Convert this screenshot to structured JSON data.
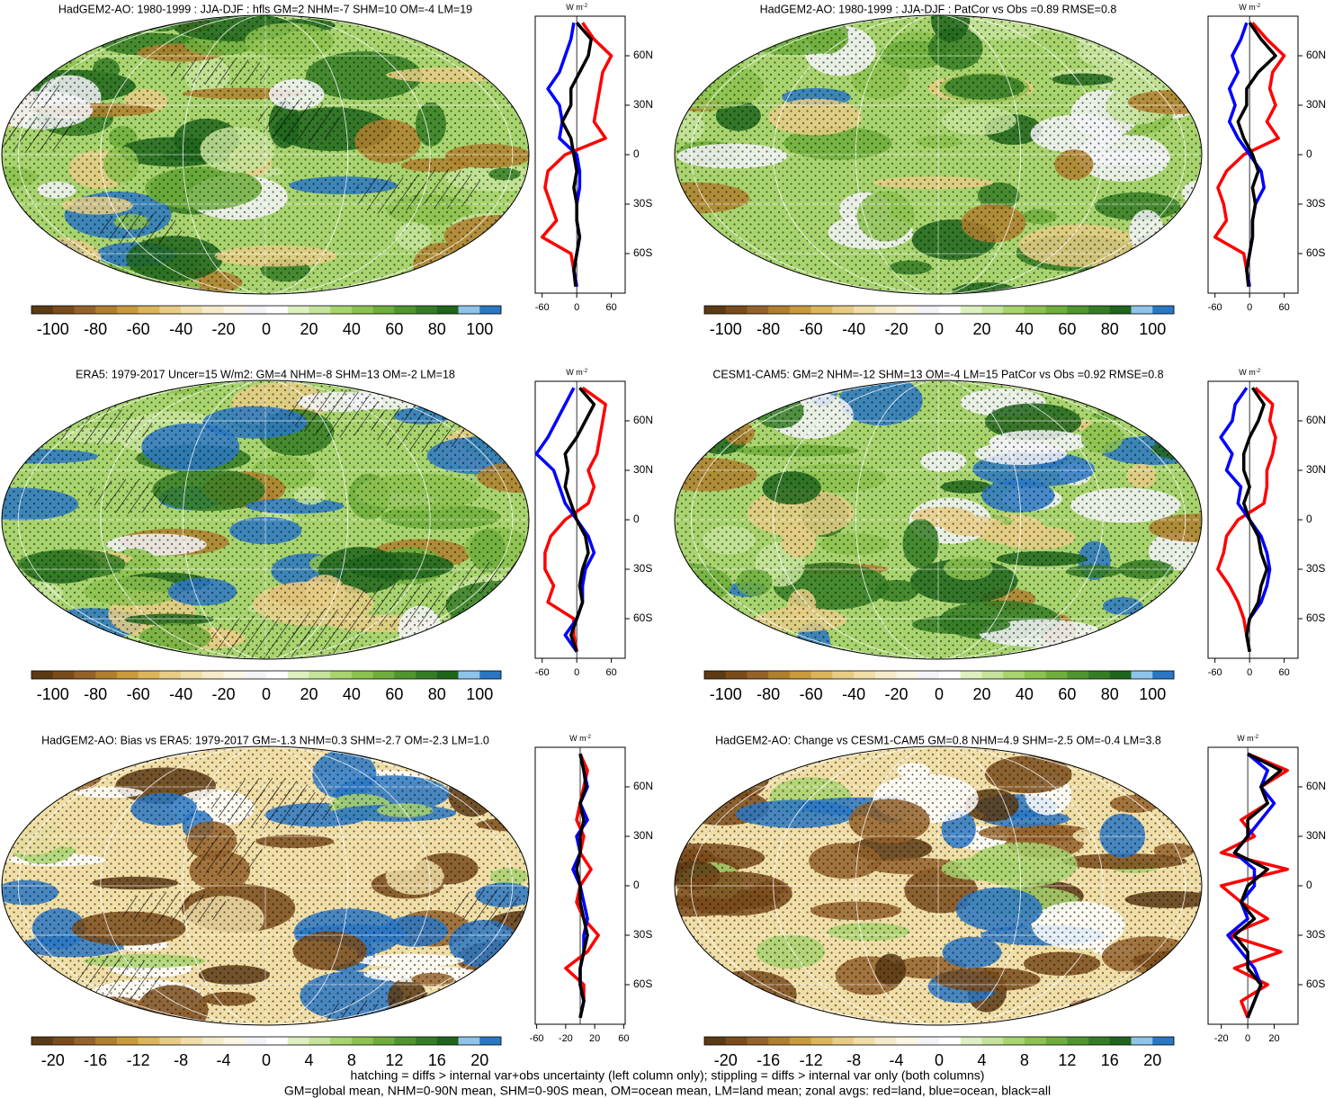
{
  "palette": [
    "#5c3a14",
    "#7a4b1b",
    "#94622a",
    "#b07f2e",
    "#c99a3c",
    "#dcb45a",
    "#e8cc85",
    "#f0dea6",
    "#f6ebc8",
    "#fbf5e3",
    "#f3f3f8",
    "#ffffff",
    "#dff0c0",
    "#c5e39a",
    "#a8d46e",
    "#8cc24f",
    "#6fae3c",
    "#4f962e",
    "#357d24",
    "#1f651c",
    "#8ec4ea",
    "#2a77c4"
  ],
  "panels": [
    {
      "title": "HadGEM2-AO: 1980-1999 : JJA-DJF : hfls GM=2 NHM=-7 SHM=10 OM=-4 LM=19",
      "colorbar": {
        "lim": [
          -110,
          110
        ],
        "ticks": [
          -100,
          -80,
          -60,
          -40,
          -20,
          0,
          20,
          40,
          60,
          80,
          100
        ]
      },
      "zonal": {
        "type": "line",
        "unit": {
          "base": "W m",
          "exp": "-2"
        },
        "xlim": [
          -72,
          84
        ],
        "xticks": [
          -60,
          0,
          60
        ],
        "ylim": [
          -84,
          84
        ],
        "yticks": [
          {
            "value": 60,
            "label": "60N"
          },
          {
            "value": 30,
            "label": "30N"
          },
          0,
          {
            "value": -30,
            "label": "30S"
          },
          {
            "value": -60,
            "label": "60S"
          }
        ],
        "lat": [
          80,
          70,
          60,
          50,
          40,
          30,
          20,
          10,
          0,
          -10,
          -20,
          -30,
          -40,
          -50,
          -60,
          -70,
          -80
        ],
        "series": [
          {
            "color": "#ff0000",
            "values": [
              10,
              30,
              60,
              45,
              40,
              35,
              30,
              50,
              -20,
              -50,
              -55,
              -45,
              -35,
              -60,
              -10,
              -5,
              0
            ]
          },
          {
            "color": "#0000ff",
            "values": [
              -5,
              -10,
              -20,
              -30,
              -50,
              -30,
              -25,
              -30,
              0,
              5,
              5,
              0,
              0,
              5,
              0,
              -5,
              0
            ]
          },
          {
            "color": "#000000",
            "values": [
              0,
              25,
              20,
              5,
              -10,
              -10,
              -25,
              -10,
              -5,
              0,
              -5,
              0,
              0,
              5,
              0,
              -5,
              -2
            ]
          }
        ]
      }
    },
    {
      "title": "HadGEM2-AO: 1980-1999 : JJA-DJF : PatCor vs Obs =0.89 RMSE=0.8",
      "colorbar": {
        "lim": [
          -110,
          110
        ],
        "ticks": [
          -100,
          -80,
          -60,
          -40,
          -20,
          0,
          20,
          40,
          60,
          80,
          100
        ]
      },
      "zonal": {
        "type": "line",
        "unit": {
          "base": "W m",
          "exp": "-2"
        },
        "xlim": [
          -72,
          84
        ],
        "xticks": [
          -60,
          0,
          60
        ],
        "ylim": [
          -84,
          84
        ],
        "yticks": [
          {
            "value": 60,
            "label": "60N"
          },
          {
            "value": 30,
            "label": "30N"
          },
          0,
          {
            "value": -30,
            "label": "30S"
          },
          {
            "value": -60,
            "label": "60S"
          }
        ],
        "lat": [
          80,
          70,
          60,
          50,
          40,
          30,
          20,
          10,
          0,
          -10,
          -20,
          -30,
          -40,
          -50,
          -60,
          -70,
          -80
        ],
        "series": [
          {
            "color": "#ff0000",
            "values": [
              5,
              30,
              60,
              40,
              35,
              45,
              30,
              50,
              -10,
              -40,
              -55,
              -45,
              -40,
              -60,
              -10,
              -5,
              0
            ]
          },
          {
            "color": "#0000ff",
            "values": [
              -5,
              -15,
              -30,
              -20,
              -35,
              -25,
              -35,
              -20,
              0,
              20,
              25,
              10,
              5,
              5,
              0,
              -5,
              0
            ]
          },
          {
            "color": "#000000",
            "values": [
              0,
              20,
              45,
              15,
              -5,
              -5,
              -20,
              -10,
              5,
              15,
              5,
              10,
              5,
              5,
              0,
              -5,
              -2
            ]
          }
        ]
      }
    },
    {
      "title": "ERA5: 1979-2017 Uncer=15 W/m2: GM=4 NHM=-8 SHM=13 OM=-2 LM=18",
      "colorbar": {
        "lim": [
          -110,
          110
        ],
        "ticks": [
          -100,
          -80,
          -60,
          -40,
          -20,
          0,
          20,
          40,
          60,
          80,
          100
        ]
      },
      "zonal": {
        "type": "line",
        "unit": {
          "base": "W m",
          "exp": "-2"
        },
        "xlim": [
          -72,
          84
        ],
        "xticks": [
          -60,
          0,
          60
        ],
        "ylim": [
          -84,
          84
        ],
        "yticks": [
          {
            "value": 60,
            "label": "60N"
          },
          {
            "value": 30,
            "label": "30N"
          },
          0,
          {
            "value": -30,
            "label": "30S"
          },
          {
            "value": -60,
            "label": "60S"
          }
        ],
        "lat": [
          80,
          70,
          60,
          50,
          40,
          30,
          20,
          10,
          0,
          -10,
          -20,
          -30,
          -40,
          -50,
          -60,
          -70,
          -80
        ],
        "series": [
          {
            "color": "#ff0000",
            "values": [
              10,
              50,
              45,
              40,
              35,
              20,
              30,
              20,
              -20,
              -45,
              -55,
              -55,
              -40,
              -50,
              -5,
              -5,
              0
            ]
          },
          {
            "color": "#0000ff",
            "values": [
              -5,
              -20,
              -35,
              -50,
              -70,
              -40,
              -30,
              -20,
              0,
              20,
              30,
              15,
              10,
              10,
              0,
              -20,
              0
            ]
          },
          {
            "color": "#000000",
            "values": [
              5,
              30,
              15,
              0,
              -20,
              -15,
              -20,
              -10,
              0,
              15,
              20,
              10,
              5,
              10,
              0,
              -10,
              0
            ]
          }
        ]
      }
    },
    {
      "title": "CESM1-CAM5: GM=2 NHM=-12 SHM=13 OM=-4 LM=15 PatCor vs Obs =0.92 RMSE=0.8",
      "colorbar": {
        "lim": [
          -110,
          110
        ],
        "ticks": [
          -100,
          -80,
          -60,
          -40,
          -20,
          0,
          20,
          40,
          60,
          80,
          100
        ]
      },
      "zonal": {
        "type": "line",
        "unit": {
          "base": "W m",
          "exp": "-2"
        },
        "xlim": [
          -72,
          84
        ],
        "xticks": [
          -60,
          0,
          60
        ],
        "ylim": [
          -84,
          84
        ],
        "yticks": [
          {
            "value": 60,
            "label": "60N"
          },
          {
            "value": 30,
            "label": "30N"
          },
          0,
          {
            "value": -30,
            "label": "30S"
          },
          {
            "value": -60,
            "label": "60S"
          }
        ],
        "lat": [
          80,
          70,
          60,
          50,
          40,
          30,
          20,
          10,
          0,
          -10,
          -20,
          -30,
          -40,
          -50,
          -60,
          -70,
          -80
        ],
        "series": [
          {
            "color": "#ff0000",
            "values": [
              10,
              40,
              35,
              45,
              40,
              30,
              30,
              25,
              -20,
              -40,
              -45,
              -55,
              -35,
              -20,
              -10,
              -5,
              0
            ]
          },
          {
            "color": "#0000ff",
            "values": [
              -5,
              -25,
              -30,
              -50,
              -30,
              -40,
              -15,
              -20,
              0,
              20,
              30,
              35,
              30,
              20,
              0,
              -5,
              0
            ]
          },
          {
            "color": "#000000",
            "values": [
              5,
              25,
              15,
              0,
              -10,
              -10,
              0,
              -10,
              0,
              15,
              20,
              30,
              20,
              15,
              0,
              -5,
              0
            ]
          }
        ]
      }
    },
    {
      "title": "HadGEM2-AO: Bias vs ERA5: 1979-2017 GM=-1.3 NHM=0.3 SHM=-2.7 OM=-2.3 LM=1.0",
      "colorbar": {
        "lim": [
          -22,
          22
        ],
        "ticks": [
          -20,
          -16,
          -12,
          -8,
          -4,
          0,
          4,
          8,
          12,
          16,
          20
        ]
      },
      "zonal": {
        "type": "line",
        "unit": {
          "base": "W m",
          "exp": "-2"
        },
        "xlim": [
          -62,
          62
        ],
        "xticks": [
          -60,
          -20,
          20,
          60
        ],
        "ylim": [
          -84,
          84
        ],
        "yticks": [
          {
            "value": 60,
            "label": "60N"
          },
          {
            "value": 30,
            "label": "30N"
          },
          0,
          {
            "value": -30,
            "label": "30S"
          },
          {
            "value": -60,
            "label": "60S"
          }
        ],
        "lat": [
          80,
          70,
          60,
          50,
          40,
          30,
          20,
          10,
          0,
          -10,
          -20,
          -30,
          -40,
          -50,
          -60,
          -70,
          -80
        ],
        "series": [
          {
            "color": "#ff0000",
            "values": [
              0,
              10,
              5,
              0,
              -5,
              5,
              0,
              15,
              0,
              -5,
              5,
              25,
              10,
              -20,
              5,
              5,
              0
            ]
          },
          {
            "color": "#0000ff",
            "values": [
              0,
              5,
              10,
              0,
              10,
              -5,
              0,
              -10,
              0,
              5,
              10,
              5,
              5,
              0,
              0,
              5,
              0
            ]
          },
          {
            "color": "#000000",
            "values": [
              0,
              5,
              8,
              0,
              5,
              0,
              0,
              -5,
              0,
              0,
              5,
              10,
              5,
              0,
              0,
              5,
              0
            ]
          }
        ]
      }
    },
    {
      "title": "HadGEM2-AO: Change vs CESM1-CAM5 GM=0.8 NHM=4.9 SHM=-2.5 OM=-0.4 LM=3.8",
      "colorbar": {
        "lim": [
          -22,
          22
        ],
        "ticks": [
          -20,
          -16,
          -12,
          -8,
          -4,
          0,
          4,
          8,
          12,
          16,
          20
        ]
      },
      "zonal": {
        "type": "line",
        "unit": {
          "base": "W m",
          "exp": "-2"
        },
        "xlim": [
          -30,
          38
        ],
        "xticks": [
          -20,
          0,
          20
        ],
        "ylim": [
          -84,
          84
        ],
        "yticks": [
          {
            "value": 60,
            "label": "60N"
          },
          {
            "value": 30,
            "label": "30N"
          },
          0,
          {
            "value": -30,
            "label": "30S"
          },
          {
            "value": -60,
            "label": "60S"
          }
        ],
        "lat": [
          80,
          70,
          60,
          50,
          40,
          30,
          20,
          10,
          0,
          -10,
          -20,
          -30,
          -40,
          -50,
          -60,
          -70,
          -80
        ],
        "series": [
          {
            "color": "#ff0000",
            "values": [
              0,
              30,
              10,
              15,
              -5,
              5,
              -20,
              30,
              -20,
              -5,
              15,
              -15,
              25,
              -10,
              15,
              -5,
              0
            ]
          },
          {
            "color": "#0000ff",
            "values": [
              0,
              15,
              10,
              20,
              10,
              0,
              -10,
              5,
              5,
              -5,
              0,
              -15,
              -5,
              5,
              10,
              5,
              0
            ]
          },
          {
            "color": "#000000",
            "values": [
              0,
              25,
              10,
              15,
              0,
              0,
              -10,
              15,
              0,
              -5,
              5,
              -10,
              0,
              0,
              10,
              5,
              0
            ]
          }
        ]
      }
    }
  ],
  "footer": [
    "hatching = diffs > internal var+obs uncertainty (left column only); stippling = diffs > internal var only (both columns)",
    "GM=global mean, NHM=0-90N mean, SHM=0-90S mean, OM=ocean mean, LM=land mean; zonal avgs: red=land, blue=ocean, black=all"
  ]
}
